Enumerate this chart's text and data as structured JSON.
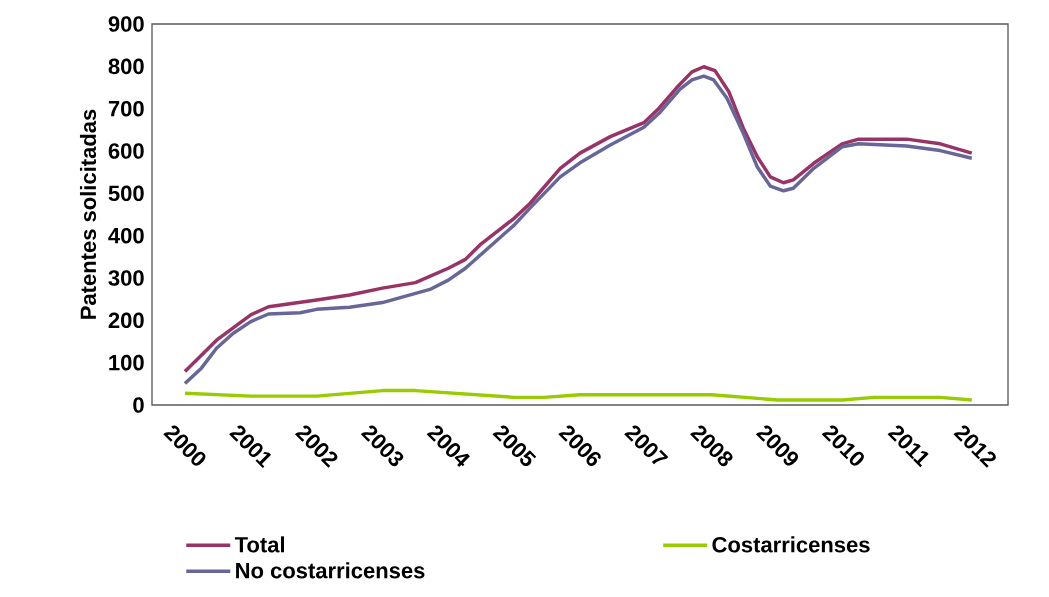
{
  "chart_data": {
    "type": "line",
    "ylabel": "Patentes solicitadas",
    "xlim": [
      1999.5,
      2012.5
    ],
    "xticks": [
      2000,
      2001,
      2002,
      2003,
      2004,
      2005,
      2006,
      2007,
      2008,
      2009,
      2010,
      2011,
      2012
    ],
    "ylim": [
      0,
      900
    ],
    "yticks": [
      0,
      100,
      200,
      300,
      400,
      500,
      600,
      700,
      800,
      900
    ],
    "legend": "bottom",
    "grid": false,
    "series": [
      {
        "name": "Total",
        "color": "#993366",
        "x": [
          2000.0,
          2000.48,
          2001.0,
          2001.27,
          2002.0,
          2002.5,
          2003.0,
          2003.5,
          2004.0,
          2004.26,
          2004.48,
          2005.0,
          2005.24,
          2005.7,
          2006.0,
          2006.46,
          2006.97,
          2007.2,
          2007.47,
          2007.7,
          2007.88,
          2008.05,
          2008.26,
          2008.48,
          2008.69,
          2008.89,
          2009.09,
          2009.24,
          2009.55,
          2009.98,
          2010.23,
          2010.96,
          2011.47,
          2011.95
        ],
        "values": [
          79,
          153,
          213,
          232,
          248,
          260,
          276,
          289,
          323,
          344,
          378,
          441,
          476,
          559,
          595,
          634,
          667,
          701,
          750,
          787,
          799,
          790,
          740,
          654,
          587,
          539,
          525,
          532,
          571,
          617,
          628,
          628,
          617,
          595
        ]
      },
      {
        "name": "Costarricenses",
        "color": "#99cc00",
        "x": [
          2000.0,
          2001.0,
          2002.0,
          2003.0,
          2003.5,
          2005.0,
          2005.45,
          2006.0,
          2007.0,
          2008.0,
          2009.0,
          2009.98,
          2010.47,
          2011.47,
          2011.95
        ],
        "values": [
          28,
          21,
          21,
          34,
          34,
          18,
          18,
          24,
          24,
          24,
          12,
          12,
          18,
          18,
          12
        ]
      },
      {
        "name": "No costarricenses",
        "color": "#666699",
        "x": [
          2000.0,
          2000.25,
          2000.48,
          2000.73,
          2001.0,
          2001.27,
          2001.75,
          2002.0,
          2002.5,
          2003.0,
          2003.72,
          2004.0,
          2004.26,
          2005.0,
          2005.24,
          2005.7,
          2006.0,
          2006.46,
          2006.97,
          2007.2,
          2007.52,
          2007.7,
          2007.88,
          2008.03,
          2008.23,
          2008.48,
          2008.69,
          2008.89,
          2009.09,
          2009.24,
          2009.55,
          2009.98,
          2010.23,
          2010.96,
          2011.47,
          2011.95
        ],
        "values": [
          51,
          87,
          134,
          169,
          197,
          215,
          218,
          226,
          231,
          242,
          273,
          295,
          323,
          425,
          465,
          539,
          572,
          614,
          656,
          689,
          746,
          768,
          777,
          768,
          725,
          642,
          563,
          517,
          506,
          512,
          559,
          610,
          617,
          612,
          601,
          583
        ]
      }
    ]
  }
}
